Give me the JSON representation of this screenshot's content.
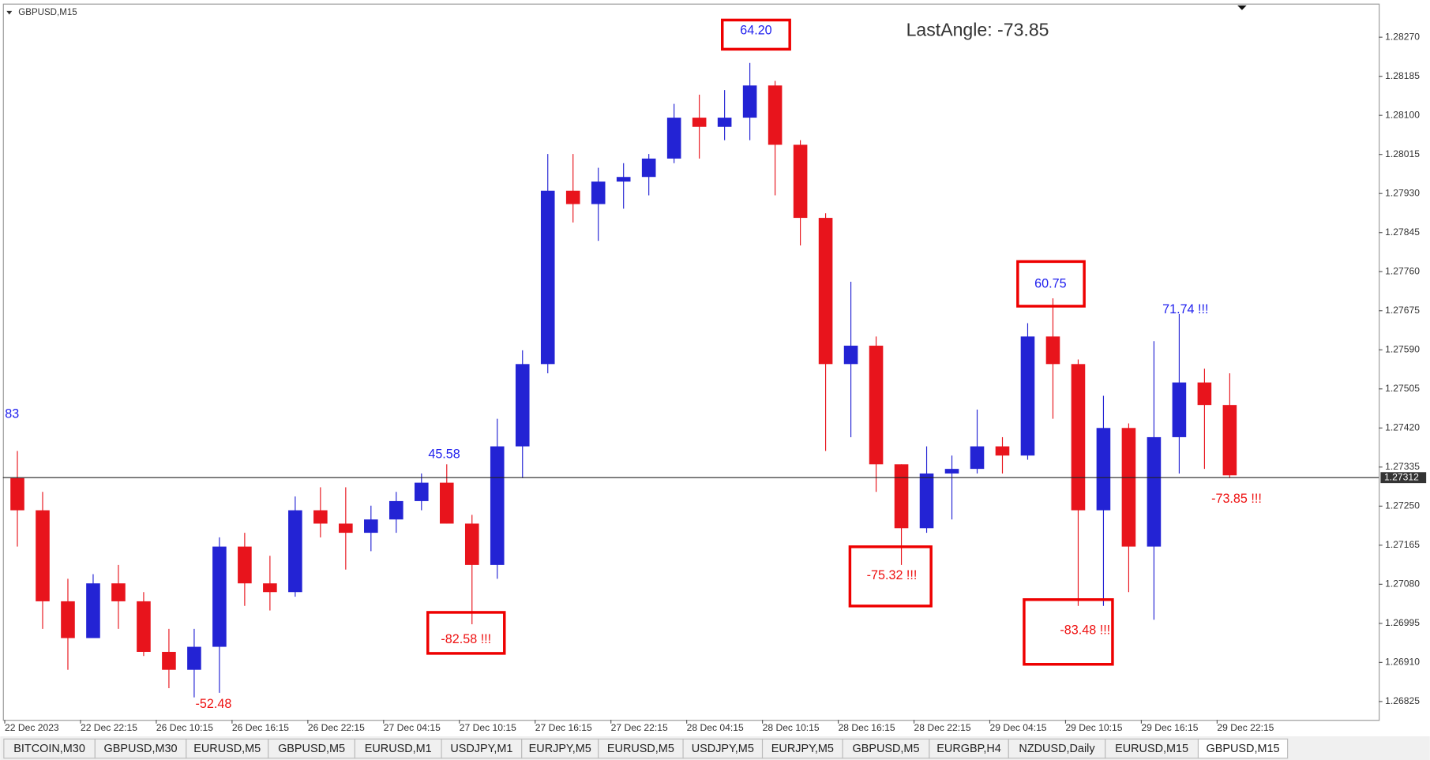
{
  "chart_data": {
    "type": "candlestick",
    "symbol": "GBPUSD,M15",
    "up_color": "#2323d4",
    "down_color": "#e8141c",
    "open": [
      1.27311,
      1.27241,
      1.27043,
      1.26963,
      1.27082,
      1.27043,
      1.26933,
      1.26894,
      1.26944,
      1.27162,
      1.27082,
      1.27063,
      1.27241,
      1.27212,
      1.27192,
      1.27221,
      1.27261,
      1.27301,
      1.27212,
      1.27122,
      1.2738,
      1.27559,
      1.27936,
      1.27907,
      1.27956,
      1.27966,
      1.28006,
      1.28095,
      1.28075,
      1.28095,
      1.28165,
      1.28036,
      1.27877,
      1.27559,
      1.27599,
      1.27341,
      1.27202,
      1.27321,
      1.27331,
      1.2738,
      1.2736,
      1.27619,
      1.27559,
      1.27241,
      1.2742,
      1.27162,
      1.274,
      1.27519,
      1.2747
    ],
    "high": [
      1.2737,
      1.27281,
      1.27092,
      1.27102,
      1.27122,
      1.27063,
      1.26983,
      1.26983,
      1.27182,
      1.27192,
      1.27142,
      1.27271,
      1.27291,
      1.27291,
      1.27251,
      1.27281,
      1.27321,
      1.27341,
      1.27231,
      1.2744,
      1.27589,
      1.28016,
      1.28016,
      1.27986,
      1.27996,
      1.28016,
      1.28125,
      1.28145,
      1.28155,
      1.28214,
      1.28175,
      1.28046,
      1.27887,
      1.27738,
      1.27619,
      1.27341,
      1.2738,
      1.2736,
      1.2746,
      1.274,
      1.27648,
      1.27702,
      1.27569,
      1.2749,
      1.2743,
      1.27609,
      1.27668,
      1.27549,
      1.27539
    ],
    "low": [
      1.27162,
      1.26983,
      1.26894,
      1.26963,
      1.26983,
      1.26924,
      1.26854,
      1.26834,
      1.26844,
      1.27033,
      1.27023,
      1.27053,
      1.27182,
      1.27112,
      1.27152,
      1.27192,
      1.27241,
      1.27212,
      1.26993,
      1.27092,
      1.27311,
      1.27539,
      1.27867,
      1.27827,
      1.27897,
      1.27926,
      1.27996,
      1.28006,
      1.28046,
      1.28046,
      1.27926,
      1.27817,
      1.2737,
      1.274,
      1.27281,
      1.27122,
      1.27192,
      1.27221,
      1.27321,
      1.27321,
      1.27351,
      1.2744,
      1.27033,
      1.27033,
      1.27063,
      1.27003,
      1.27321,
      1.27331,
      1.27311
    ],
    "close": [
      1.27241,
      1.27043,
      1.26963,
      1.27082,
      1.27043,
      1.26933,
      1.26894,
      1.26944,
      1.27162,
      1.27082,
      1.27063,
      1.27241,
      1.27212,
      1.27192,
      1.27221,
      1.27261,
      1.27301,
      1.27212,
      1.27122,
      1.2738,
      1.27559,
      1.27936,
      1.27907,
      1.27956,
      1.27966,
      1.28006,
      1.28095,
      1.28075,
      1.28095,
      1.28165,
      1.28036,
      1.27877,
      1.27559,
      1.27599,
      1.27341,
      1.27202,
      1.27321,
      1.27331,
      1.2738,
      1.2736,
      1.27619,
      1.27559,
      1.27241,
      1.2742,
      1.27162,
      1.274,
      1.27519,
      1.2747,
      1.27317
    ],
    "xlim": [
      -0.5,
      53.9
    ],
    "xticks": [
      {
        "value": -0.5,
        "label": "22 Dec 2023"
      },
      {
        "value": 2.5,
        "label": "22 Dec 22:15"
      },
      {
        "value": 5.5,
        "label": "26 Dec 10:15"
      },
      {
        "value": 8.5,
        "label": "26 Dec 16:15"
      },
      {
        "value": 11.5,
        "label": "26 Dec 22:15"
      },
      {
        "value": 14.5,
        "label": "27 Dec 04:15"
      },
      {
        "value": 17.5,
        "label": "27 Dec 10:15"
      },
      {
        "value": 20.5,
        "label": "27 Dec 16:15"
      },
      {
        "value": 23.5,
        "label": "27 Dec 22:15"
      },
      {
        "value": 26.5,
        "label": "28 Dec 04:15"
      },
      {
        "value": 29.5,
        "label": "28 Dec 10:15"
      },
      {
        "value": 32.5,
        "label": "28 Dec 16:15"
      },
      {
        "value": 35.5,
        "label": "28 Dec 22:15"
      },
      {
        "value": 38.5,
        "label": "29 Dec 04:15"
      },
      {
        "value": 41.5,
        "label": "29 Dec 10:15"
      },
      {
        "value": 44.5,
        "label": "29 Dec 16:15"
      },
      {
        "value": 47.5,
        "label": "29 Dec 22:15"
      }
    ],
    "ylim": [
      1.26785,
      1.28343
    ],
    "yticks": [
      {
        "value": 1.2827,
        "label": "1.28270"
      },
      {
        "value": 1.28185,
        "label": "1.28185"
      },
      {
        "value": 1.281,
        "label": "1.28100"
      },
      {
        "value": 1.28015,
        "label": "1.28015"
      },
      {
        "value": 1.2793,
        "label": "1.27930"
      },
      {
        "value": 1.27845,
        "label": "1.27845"
      },
      {
        "value": 1.2776,
        "label": "1.27760"
      },
      {
        "value": 1.27675,
        "label": "1.27675"
      },
      {
        "value": 1.2759,
        "label": "1.27590"
      },
      {
        "value": 1.27505,
        "label": "1.27505"
      },
      {
        "value": 1.2742,
        "label": "1.27420"
      },
      {
        "value": 1.27335,
        "label": "1.27335"
      },
      {
        "value": 1.2725,
        "label": "1.27250"
      },
      {
        "value": 1.27165,
        "label": "1.27165"
      },
      {
        "value": 1.2708,
        "label": "1.27080"
      },
      {
        "value": 1.26995,
        "label": "1.26995"
      },
      {
        "value": 1.2691,
        "label": "1.26910"
      },
      {
        "value": 1.26825,
        "label": "1.26825"
      }
    ],
    "current_price": {
      "value": 1.27312,
      "label": "1.27312"
    },
    "annotations": [
      "64.20",
      "LastAngle: -73.85",
      "60.75",
      "71.74 !!!",
      "-75.32 !!!",
      "-83.48 !!!",
      "-82.58 !!!",
      "45.58",
      "-52.48",
      "83",
      "-73.85 !!!"
    ]
  },
  "tabs": [
    "BITCOIN,M30",
    "GBPUSD,M30",
    "EURUSD,M5",
    "GBPUSD,M5",
    "EURUSD,M1",
    "USDJPY,M1",
    "EURJPY,M5",
    "EURUSD,M5",
    "USDJPY,M5",
    "EURJPY,M5",
    "GBPUSD,M5",
    "EURGBP,H4",
    "NZDUSD,Daily",
    "EURUSD,M15",
    "GBPUSD,M15"
  ]
}
